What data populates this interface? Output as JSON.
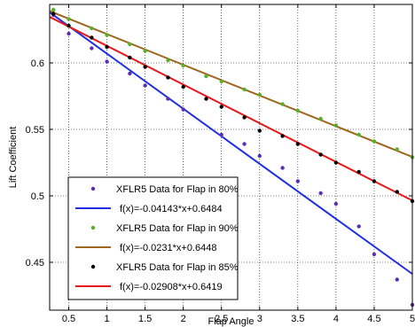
{
  "chart_data": {
    "type": "scatter",
    "title": "",
    "xlabel": "Flap Angle",
    "ylabel": "Lift Coefficient",
    "xlim": [
      0.25,
      5.0
    ],
    "ylim": [
      0.414,
      0.644
    ],
    "grid": true,
    "xticks": [
      0.5,
      1,
      1.5,
      2,
      2.5,
      3,
      3.5,
      4,
      4.5,
      5
    ],
    "xtick_labels": [
      "0.5",
      "1",
      "1.5",
      "2",
      "2.5",
      "3",
      "3.5",
      "4",
      "4.5",
      "5"
    ],
    "yticks": [
      0.45,
      0.5,
      0.55,
      0.6
    ],
    "ytick_labels": [
      "0.45",
      "0.5",
      "0.55",
      "0.6"
    ],
    "legend_position": "bottom-left",
    "series": [
      {
        "name": "XFLR5 Data for Flap in 80%",
        "kind": "points",
        "color": "#5b2fb3",
        "x": [
          0.3,
          0.5,
          0.8,
          1.0,
          1.3,
          1.5,
          1.8,
          2.0,
          2.5,
          2.8,
          3.0,
          3.3,
          3.5,
          3.8,
          4.0,
          4.3,
          4.5,
          4.8,
          5.0
        ],
        "y": [
          0.636,
          0.622,
          0.611,
          0.601,
          0.592,
          0.583,
          0.573,
          0.565,
          0.546,
          0.539,
          0.53,
          0.521,
          0.511,
          0.502,
          0.494,
          0.477,
          0.456,
          0.437,
          0.418
        ]
      },
      {
        "name": "f(x)=-0.04143*x+0.6484",
        "kind": "line",
        "color": "#1f2fe0",
        "slope": -0.04143,
        "intercept": 0.6484
      },
      {
        "name": "XFLR5 Data for Flap in 90%",
        "kind": "points",
        "color": "#55b02a",
        "x": [
          0.3,
          0.5,
          0.8,
          1.0,
          1.3,
          1.5,
          1.8,
          2.0,
          2.3,
          2.5,
          2.8,
          3.0,
          3.3,
          3.5,
          3.8,
          4.0,
          4.3,
          4.5,
          4.8,
          5.0
        ],
        "y": [
          0.64,
          0.633,
          0.626,
          0.621,
          0.614,
          0.609,
          0.602,
          0.598,
          0.59,
          0.586,
          0.58,
          0.576,
          0.569,
          0.564,
          0.558,
          0.553,
          0.546,
          0.541,
          0.535,
          0.529
        ]
      },
      {
        "name": "f(x)=-0.0231*x+0.6448",
        "kind": "line",
        "color": "#a0661e",
        "slope": -0.0231,
        "intercept": 0.6448
      },
      {
        "name": "XFLR5 Data for Flap in 85%",
        "kind": "points",
        "color": "#000000",
        "x": [
          0.3,
          0.5,
          0.8,
          1.0,
          1.3,
          1.5,
          1.8,
          2.0,
          2.3,
          2.5,
          2.8,
          3.0,
          3.3,
          3.5,
          3.8,
          4.0,
          4.3,
          4.5,
          4.8,
          5.0
        ],
        "y": [
          0.637,
          0.628,
          0.619,
          0.612,
          0.604,
          0.597,
          0.589,
          0.582,
          0.573,
          0.567,
          0.559,
          0.549,
          0.545,
          0.539,
          0.531,
          0.525,
          0.518,
          0.511,
          0.503,
          0.496
        ]
      },
      {
        "name": "f(x)=-0.02908*x+0.6419",
        "kind": "line",
        "color": "#e81818",
        "slope": -0.02908,
        "intercept": 0.6419
      }
    ]
  }
}
